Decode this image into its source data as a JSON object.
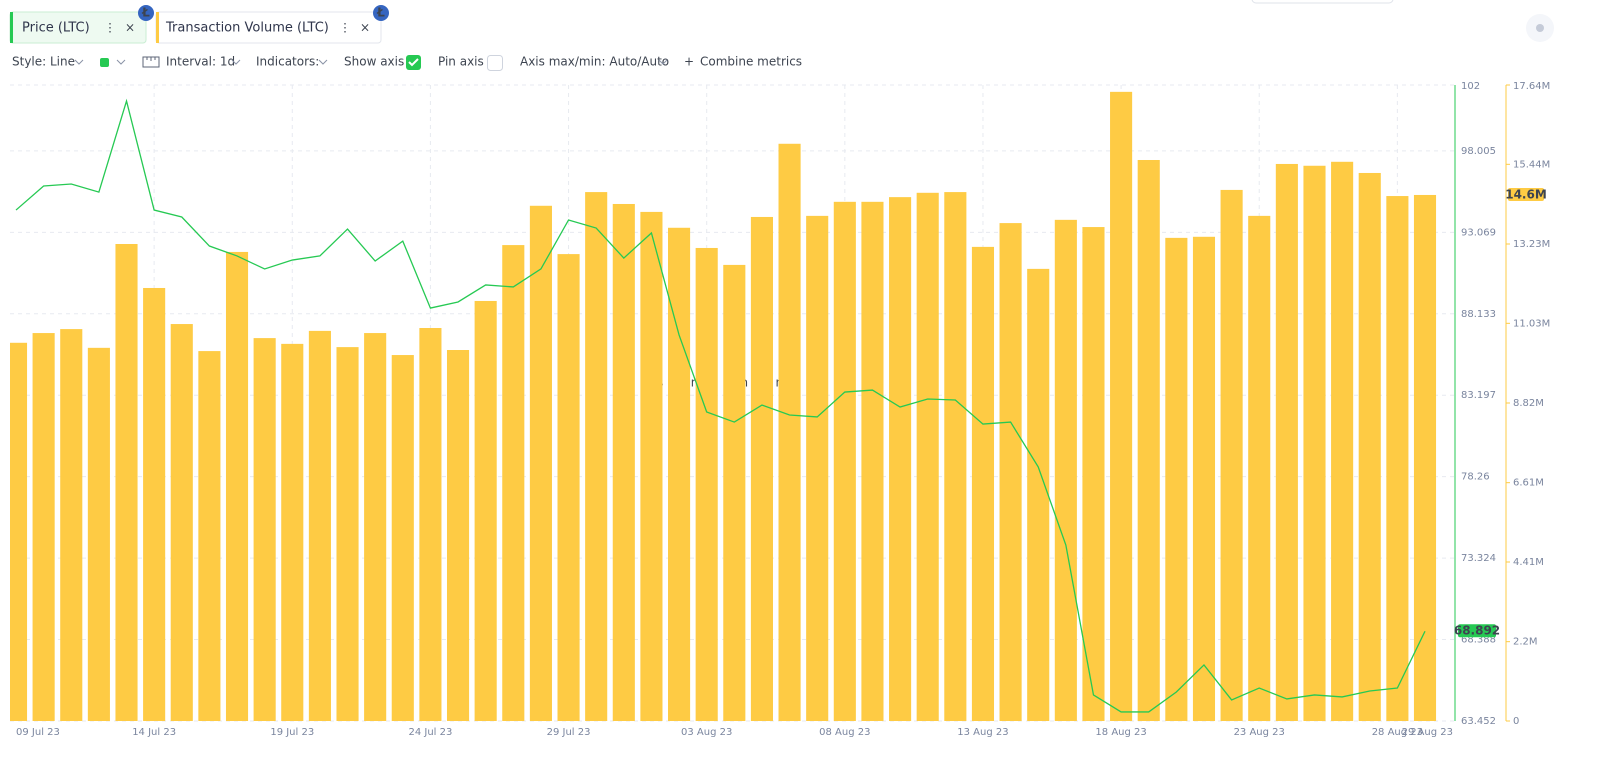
{
  "tabs": [
    "Price (LTC)",
    "Transaction Volume (LTC)"
  ],
  "toolbar": {
    "style": "Style: Line",
    "interval": "Interval: 1d",
    "indicators": "Indicators:",
    "show_axis": "Show axis",
    "pin_axis": "Pin axis",
    "axis_range": "Axis max/min: Auto/Auto",
    "combine": "Combine metrics"
  },
  "chart_data": {
    "type": "bar",
    "watermark": "santiment",
    "categories": [
      "09 Jul 23",
      null,
      null,
      null,
      null,
      "14 Jul 23",
      null,
      null,
      null,
      null,
      "19 Jul 23",
      null,
      null,
      null,
      null,
      "24 Jul 23",
      null,
      null,
      null,
      null,
      "29 Jul 23",
      null,
      null,
      null,
      null,
      "03 Aug 23",
      null,
      null,
      null,
      null,
      "08 Aug 23",
      null,
      null,
      null,
      null,
      "13 Aug 23",
      null,
      null,
      null,
      null,
      "18 Aug 23",
      null,
      null,
      null,
      null,
      "23 Aug 23",
      null,
      null,
      null,
      null,
      "28 Aug 23",
      "29 Aug 23"
    ],
    "series": [
      {
        "name": "Price (LTC)",
        "type": "line",
        "color": "#26c953",
        "axis": "y",
        "values": [
          94.42,
          95.88,
          96.0,
          95.51,
          101.03,
          94.42,
          94.0,
          92.24,
          91.64,
          90.85,
          91.39,
          91.64,
          93.27,
          91.33,
          92.54,
          88.48,
          88.85,
          89.88,
          89.76,
          90.85,
          93.82,
          93.33,
          91.51,
          93.03,
          86.85,
          82.18,
          81.57,
          82.6,
          82.0,
          81.88,
          83.39,
          83.51,
          82.48,
          82.97,
          82.91,
          81.45,
          81.57,
          78.85,
          74.12,
          65.03,
          64.0,
          64.0,
          65.21,
          66.85,
          64.73,
          65.45,
          64.79,
          65.03,
          64.91,
          65.27,
          65.45,
          68.892
        ]
      },
      {
        "name": "Transaction Volume (LTC)",
        "type": "bar",
        "color": "#fecb44",
        "axis": "y2",
        "values": [
          10490000,
          10760000,
          10870000,
          10350000,
          13230000,
          12010000,
          11010000,
          10260000,
          13010000,
          10620000,
          10460000,
          10820000,
          10370000,
          10760000,
          10150000,
          10900000,
          10290000,
          11650000,
          13200000,
          14290000,
          12950000,
          14670000,
          14340000,
          14120000,
          13680000,
          13120000,
          12650000,
          13980000,
          16010000,
          14010000,
          14400000,
          14400000,
          14530000,
          14650000,
          14670000,
          13150000,
          13810000,
          12540000,
          13900000,
          13700000,
          17450000,
          15560000,
          13400000,
          13430000,
          14730000,
          14010000,
          15450000,
          15400000,
          15510000,
          15200000,
          14560000,
          14590000
        ],
        "value_labels": [
          null,
          null,
          null,
          null,
          null,
          null,
          null,
          null,
          null,
          null,
          null,
          null,
          null,
          null,
          null,
          null,
          null,
          null,
          null,
          null,
          null,
          null,
          null,
          null,
          null,
          null,
          null,
          null,
          null,
          null,
          null,
          null,
          null,
          null,
          null,
          null,
          null,
          null,
          null,
          null,
          null,
          null,
          null,
          null,
          null,
          null,
          null,
          null,
          null,
          null,
          null,
          "14.6M"
        ]
      }
    ],
    "ylim": [
      63.452,
      102
    ],
    "yticks": [
      63.452,
      68.388,
      73.324,
      78.26,
      83.197,
      88.133,
      93.069,
      98.005,
      102
    ],
    "y2lim": [
      0,
      17640000
    ],
    "y2ticks": [
      0,
      {
        "value": 2200000,
        "label": "2.2M"
      },
      {
        "value": 4410000,
        "label": "4.41M"
      },
      {
        "value": 6610000,
        "label": "6.61M"
      },
      {
        "value": 8820000,
        "label": "8.82M"
      },
      {
        "value": 11030000,
        "label": "11.03M"
      },
      {
        "value": 13230000,
        "label": "13.23M"
      },
      {
        "value": 15440000,
        "label": "15.44M"
      },
      {
        "value": 17640000,
        "label": "17.64M"
      }
    ],
    "grid": true
  }
}
